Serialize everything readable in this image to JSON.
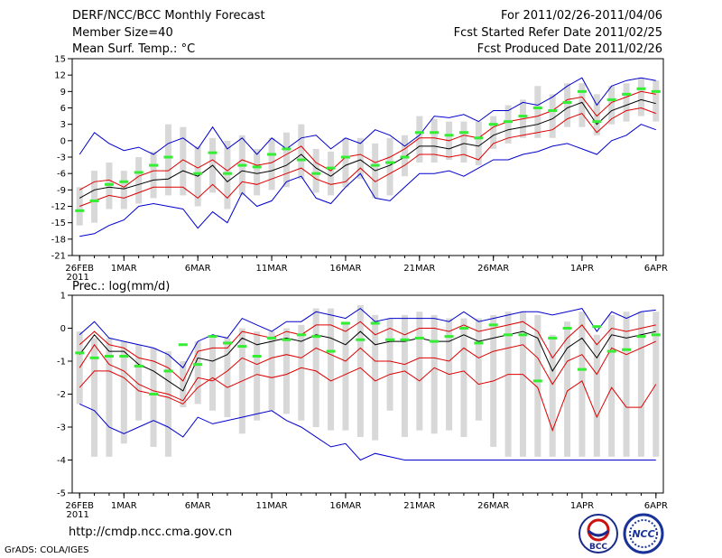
{
  "header": {
    "title": "DERF/NCC/BCC Monthly Forecast",
    "member_size": "Member Size=40",
    "variable": "Mean Surf. Temp.: °C",
    "for_range": "For 2011/02/26-2011/04/06",
    "started": "Fcst Started Refer Date 2011/02/25",
    "produced": "Fcst Produced Date 2011/02/26"
  },
  "footer": {
    "url": "http://cmdp.ncc.cma.gov.cn",
    "credit": "GrADS: COLA/IGES",
    "logo1_text": "BCC",
    "logo2_text": "NCC"
  },
  "colors": {
    "bar": "#d8d8d8",
    "mean": "#000000",
    "spread": "#dd0000",
    "envelope": "#0000cc",
    "obs": "#33ee33"
  },
  "chart_data": [
    {
      "type": "line",
      "title": "Mean Surf. Temp.: °C",
      "x_tick_labels": [
        "26FEB\n2011",
        "1MAR",
        "6MAR",
        "11MAR",
        "16MAR",
        "21MAR",
        "26MAR",
        "1APR",
        "6APR"
      ],
      "x_tick_days": [
        0,
        3,
        8,
        13,
        18,
        23,
        28,
        34,
        39
      ],
      "ylim": [
        -21,
        15
      ],
      "yticks": [
        -21,
        -18,
        -15,
        -12,
        -9,
        -6,
        -3,
        0,
        3,
        6,
        9,
        12,
        15
      ],
      "days": 40,
      "series": [
        {
          "name": "max",
          "values": [
            -2.5,
            1.5,
            -0.5,
            -1.8,
            -1.2,
            -2.5,
            -0.5,
            0.5,
            -1.5,
            2.5,
            -1.5,
            0.5,
            -2.5,
            0.5,
            -1.5,
            0.5,
            1.0,
            -1.5,
            0.5,
            -0.5,
            2.0,
            1.0,
            -1.0,
            1.0,
            4.5,
            4.2,
            4.8,
            3.5,
            5.5,
            5.5,
            7.0,
            6.5,
            8.0,
            10.0,
            11.5,
            6.5,
            10.0,
            11.0,
            11.5,
            11.0
          ]
        },
        {
          "name": "upper",
          "values": [
            -9.0,
            -7.5,
            -7.2,
            -8.5,
            -6.5,
            -5.5,
            -5.5,
            -3.5,
            -5.0,
            -3.5,
            -5.5,
            -3.5,
            -4.5,
            -4.0,
            -2.5,
            -1.0,
            -4.0,
            -5.5,
            -3.0,
            -2.5,
            -4.0,
            -3.0,
            -1.5,
            0.5,
            0.5,
            0.0,
            1.0,
            0.5,
            2.5,
            3.5,
            4.0,
            4.5,
            5.5,
            7.5,
            8.0,
            4.5,
            7.0,
            8.0,
            9.0,
            8.5
          ]
        },
        {
          "name": "mean",
          "values": [
            -10.5,
            -9.0,
            -8.5,
            -8.8,
            -8.0,
            -7.2,
            -7.0,
            -5.5,
            -6.5,
            -4.5,
            -7.5,
            -5.5,
            -6.0,
            -5.5,
            -4.5,
            -2.5,
            -5.0,
            -6.5,
            -4.5,
            -3.5,
            -5.5,
            -4.5,
            -3.0,
            -1.0,
            -1.0,
            -1.5,
            -0.5,
            -1.0,
            1.0,
            2.0,
            2.5,
            3.0,
            4.0,
            6.0,
            7.0,
            3.0,
            5.5,
            6.5,
            7.5,
            6.8
          ]
        },
        {
          "name": "lower",
          "values": [
            -12.0,
            -11.0,
            -10.0,
            -10.5,
            -9.5,
            -8.5,
            -8.5,
            -8.5,
            -10.5,
            -8.0,
            -10.5,
            -7.5,
            -8.0,
            -7.0,
            -6.0,
            -5.0,
            -7.0,
            -8.0,
            -7.5,
            -5.0,
            -7.5,
            -6.0,
            -4.5,
            -2.5,
            -2.5,
            -3.0,
            -2.5,
            -3.5,
            -0.5,
            0.5,
            1.0,
            1.5,
            2.0,
            4.0,
            5.0,
            1.5,
            4.0,
            5.5,
            6.0,
            5.0
          ]
        },
        {
          "name": "min",
          "values": [
            -17.5,
            -17.0,
            -15.5,
            -14.5,
            -12.0,
            -11.5,
            -12.0,
            -12.5,
            -16.0,
            -13.0,
            -15.0,
            -9.5,
            -12.0,
            -11.0,
            -7.5,
            -6.5,
            -10.5,
            -11.5,
            -8.5,
            -6.0,
            -10.5,
            -11.0,
            -8.5,
            -6.0,
            -6.0,
            -5.5,
            -6.5,
            -5.0,
            -3.5,
            -3.5,
            -2.5,
            -2.0,
            -1.0,
            -0.5,
            -1.5,
            -2.5,
            0.0,
            1.0,
            3.0,
            2.0
          ]
        },
        {
          "name": "bar_top",
          "values": [
            -8.5,
            -5.5,
            -4.0,
            -5.5,
            -3.0,
            -2.0,
            3.0,
            2.5,
            -1.0,
            0.5,
            0.0,
            1.0,
            -1.5,
            0.5,
            1.5,
            3.0,
            -1.5,
            -2.0,
            0.5,
            0.5,
            -0.5,
            0.5,
            1.0,
            4.5,
            4.0,
            3.5,
            3.5,
            3.5,
            4.5,
            6.5,
            7.5,
            10.0,
            8.5,
            10.5,
            10.5,
            8.5,
            10.0,
            10.5,
            11.5,
            11.0
          ]
        },
        {
          "name": "bar_bottom",
          "values": [
            -15.5,
            -15.0,
            -12.5,
            -12.5,
            -11.5,
            -10.5,
            -10.0,
            -10.0,
            -12.0,
            -9.5,
            -12.5,
            -10.0,
            -10.0,
            -9.0,
            -8.5,
            -7.0,
            -9.5,
            -10.0,
            -8.5,
            -7.0,
            -10.5,
            -10.0,
            -6.5,
            -4.0,
            -4.0,
            -3.5,
            -4.0,
            -4.5,
            -1.5,
            -0.5,
            0.5,
            0.5,
            0.5,
            2.5,
            2.5,
            1.0,
            3.0,
            3.5,
            4.5,
            3.5
          ]
        }
      ],
      "observed": {
        "name": "observed",
        "values": [
          -12.8,
          -11.0,
          -8.0,
          -7.5,
          -5.8,
          -4.5,
          -3.0,
          null,
          -6.0,
          -2.2,
          -6.0,
          -4.5,
          -4.8,
          -2.5,
          -1.5,
          -3.5,
          -6.0,
          -5.0,
          -3.0,
          null,
          -4.5,
          -4.0,
          -3.0,
          1.5,
          1.5,
          1.0,
          1.5,
          0.5,
          3.0,
          3.5,
          4.5,
          6.0,
          5.5,
          7.0,
          9.0,
          3.5,
          7.5,
          8.5,
          9.5,
          9.0
        ]
      }
    },
    {
      "type": "line",
      "title": "Prec.: log(mm/d)",
      "x_tick_labels": [
        "26FEB\n2011",
        "1MAR",
        "6MAR",
        "11MAR",
        "16MAR",
        "21MAR",
        "26MAR",
        "1APR",
        "6APR"
      ],
      "x_tick_days": [
        0,
        3,
        8,
        13,
        18,
        23,
        28,
        34,
        39
      ],
      "ylim": [
        -5,
        1
      ],
      "yticks": [
        -5,
        -4,
        -3,
        -2,
        -1,
        0,
        1
      ],
      "days": 40,
      "series": [
        {
          "name": "max",
          "values": [
            -0.2,
            0.2,
            -0.3,
            -0.4,
            -0.5,
            -0.6,
            -0.8,
            -1.2,
            -0.4,
            -0.2,
            -0.3,
            0.3,
            0.1,
            -0.1,
            0.2,
            0.2,
            0.5,
            0.4,
            0.3,
            0.6,
            0.2,
            0.3,
            0.3,
            0.3,
            0.3,
            0.2,
            0.5,
            0.2,
            0.3,
            0.4,
            0.5,
            0.5,
            0.4,
            0.5,
            0.6,
            -0.1,
            0.5,
            0.3,
            0.5,
            0.55
          ]
        },
        {
          "name": "upper",
          "values": [
            -0.5,
            -0.1,
            -0.5,
            -0.6,
            -0.9,
            -1.0,
            -1.2,
            -1.6,
            -0.7,
            -0.6,
            -0.6,
            -0.1,
            -0.2,
            -0.3,
            -0.1,
            -0.2,
            0.1,
            0.1,
            -0.1,
            0.2,
            -0.2,
            0.0,
            -0.2,
            0.0,
            0.0,
            -0.1,
            0.1,
            -0.1,
            0.0,
            0.1,
            0.2,
            -0.1,
            -0.9,
            -0.3,
            0.1,
            -0.5,
            0.0,
            -0.1,
            0.0,
            0.1
          ]
        },
        {
          "name": "mean",
          "values": [
            -0.8,
            -0.2,
            -0.7,
            -0.7,
            -1.1,
            -1.3,
            -1.6,
            -1.9,
            -0.9,
            -1.0,
            -0.8,
            -0.3,
            -0.5,
            -0.4,
            -0.3,
            -0.4,
            -0.2,
            -0.3,
            -0.5,
            -0.1,
            -0.5,
            -0.4,
            -0.4,
            -0.3,
            -0.4,
            -0.4,
            -0.2,
            -0.4,
            -0.3,
            -0.2,
            -0.1,
            -0.3,
            -1.3,
            -0.6,
            -0.3,
            -0.9,
            -0.2,
            -0.3,
            -0.2,
            -0.1
          ]
        },
        {
          "name": "lower",
          "values": [
            -1.2,
            -0.5,
            -1.1,
            -1.3,
            -1.7,
            -1.9,
            -2.0,
            -2.2,
            -1.5,
            -1.6,
            -1.3,
            -0.9,
            -1.1,
            -0.9,
            -0.8,
            -0.9,
            -0.6,
            -0.8,
            -1.0,
            -0.6,
            -1.0,
            -1.0,
            -1.1,
            -0.9,
            -0.9,
            -1.0,
            -0.6,
            -0.9,
            -0.7,
            -0.6,
            -0.5,
            -0.9,
            -1.7,
            -1.0,
            -0.8,
            -1.4,
            -0.6,
            -0.8,
            -0.6,
            -0.4
          ]
        },
        {
          "name": "lower2",
          "values": [
            -1.8,
            -1.3,
            -1.3,
            -1.5,
            -1.9,
            -2.0,
            -2.1,
            -2.3,
            -1.8,
            -1.5,
            -1.8,
            -1.6,
            -1.4,
            -1.5,
            -1.4,
            -1.2,
            -1.3,
            -1.6,
            -1.4,
            -1.2,
            -1.6,
            -1.4,
            -1.3,
            -1.6,
            -1.2,
            -1.4,
            -1.3,
            -1.7,
            -1.6,
            -1.4,
            -1.4,
            -1.8,
            -3.1,
            -1.9,
            -1.6,
            -2.7,
            -1.8,
            -2.4,
            -2.4,
            -1.7
          ]
        },
        {
          "name": "min",
          "values": [
            -2.3,
            -2.5,
            -3.0,
            -3.2,
            -3.0,
            -2.8,
            -3.0,
            -3.3,
            -2.7,
            -2.9,
            -2.8,
            -2.7,
            -2.6,
            -2.5,
            -2.8,
            -3.0,
            -3.3,
            -3.6,
            -3.5,
            -4.0,
            -3.8,
            -3.9,
            -4.0,
            -4.0,
            -4.0,
            -4.0,
            -4.0,
            -4.0,
            -4.0,
            -4.0,
            -4.0,
            -4.0,
            -4.0,
            -4.0,
            -4.0,
            -4.0,
            -4.0,
            -4.0,
            -4.0,
            -4.0
          ]
        },
        {
          "name": "bar_top",
          "values": [
            -0.1,
            -0.3,
            -0.3,
            -0.4,
            -0.5,
            -0.6,
            -0.7,
            -1.0,
            -0.4,
            -0.3,
            -0.3,
            0.0,
            -0.1,
            -0.1,
            0.0,
            0.1,
            0.6,
            0.6,
            0.2,
            0.7,
            0.4,
            0.3,
            0.4,
            0.5,
            0.4,
            0.3,
            0.3,
            0.3,
            0.4,
            0.5,
            0.5,
            0.4,
            -0.2,
            0.2,
            0.5,
            -0.2,
            0.4,
            0.5,
            0.5,
            0.5
          ]
        },
        {
          "name": "bar_bottom",
          "values": [
            -2.3,
            -3.9,
            -3.9,
            -3.5,
            -2.8,
            -3.6,
            -3.9,
            -2.4,
            -2.3,
            -2.5,
            -2.7,
            -3.2,
            -2.8,
            -2.5,
            -2.6,
            -2.8,
            -3.0,
            -3.1,
            -3.1,
            -3.3,
            -3.4,
            -2.5,
            -3.3,
            -3.1,
            -3.2,
            -3.1,
            -3.3,
            -2.8,
            -3.6,
            -3.9,
            -3.9,
            -3.9,
            -3.9,
            -3.9,
            -3.9,
            -3.9,
            -3.9,
            -3.9,
            -3.9,
            -3.9
          ]
        }
      ],
      "observed": {
        "name": "observed",
        "values": [
          -0.75,
          -0.9,
          -0.85,
          -0.85,
          -1.15,
          -2.0,
          -1.3,
          -0.5,
          -1.1,
          -0.25,
          -0.45,
          -0.55,
          -0.85,
          -0.3,
          -0.35,
          -0.2,
          -0.25,
          -0.7,
          0.15,
          -0.35,
          0.15,
          -0.35,
          -0.35,
          -0.3,
          -0.4,
          -0.25,
          0.0,
          -0.45,
          0.1,
          -0.2,
          -0.2,
          -1.6,
          -0.3,
          0.0,
          -1.25,
          0.05,
          -0.7,
          -0.65,
          -0.25,
          -0.2
        ]
      }
    }
  ]
}
